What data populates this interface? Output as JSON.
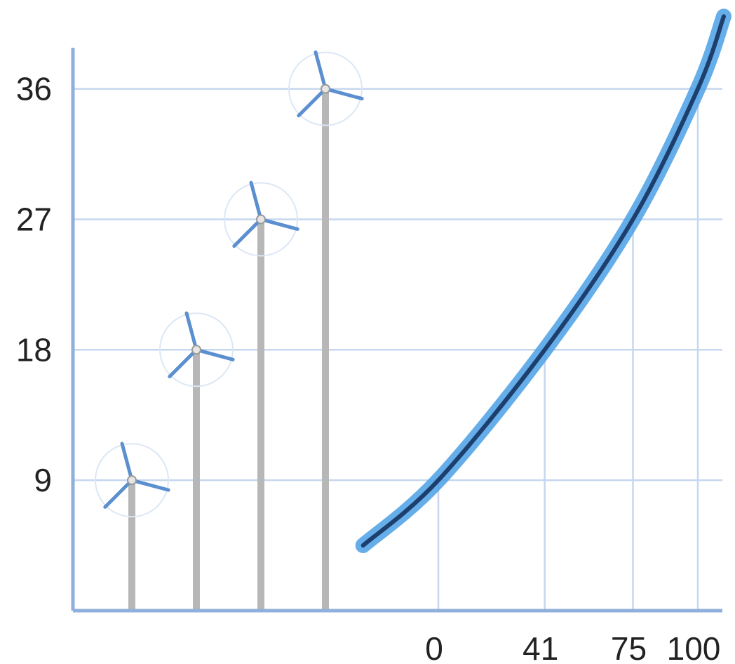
{
  "chart_data": {
    "type": "line",
    "title": "",
    "xlabel": "",
    "ylabel": "",
    "y_ticks": [
      "9",
      "18",
      "27",
      "36"
    ],
    "x_ticks": [
      "0",
      "41",
      "75",
      "100"
    ],
    "grid": true,
    "turbine_hub_heights": [
      9,
      18,
      27,
      36
    ],
    "curve": {
      "x": [
        -29,
        0,
        41,
        75,
        100,
        110
      ],
      "y": [
        4.5,
        9,
        18,
        27,
        36,
        41
      ]
    },
    "colors": {
      "axis": "#8fb0dc",
      "grid": "#c6d7ee",
      "tower": "#b7b7b7",
      "blade": "#5b8fcf",
      "curve_glow": "#4aa0e6",
      "curve_core": "#1d3f6e"
    },
    "icon": "wind-turbine-icon"
  }
}
